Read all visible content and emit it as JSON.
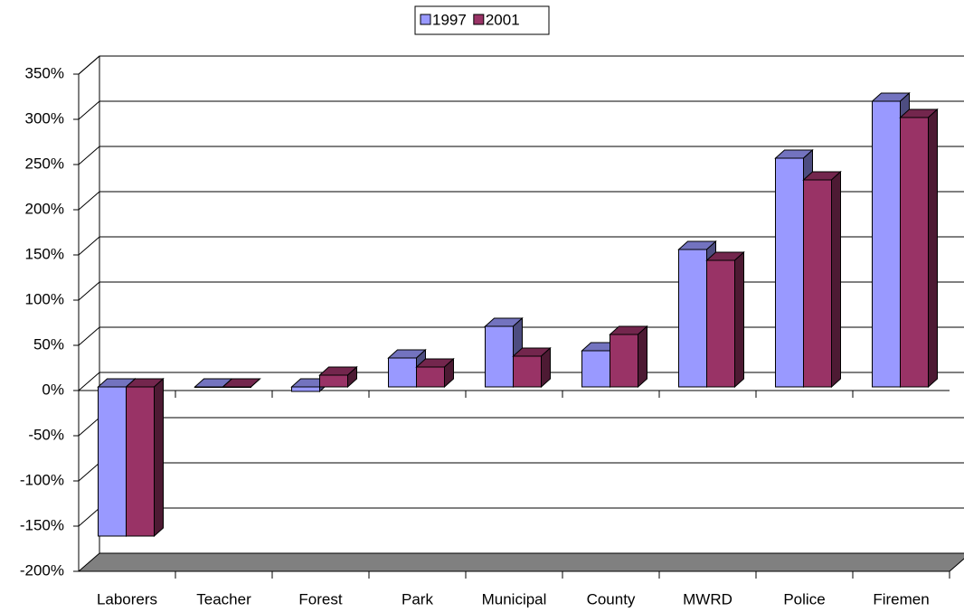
{
  "chart_data": {
    "type": "bar3d",
    "categories": [
      "Laborers",
      "Teacher",
      "Forest",
      "Park",
      "Municipal",
      "County",
      "MWRD",
      "Police",
      "Firemen"
    ],
    "series": [
      {
        "name": "1997",
        "color": "#9999ff",
        "values": [
          -165,
          0,
          -5,
          32,
          67,
          40,
          152,
          253,
          316
        ]
      },
      {
        "name": "2001",
        "color": "#993366",
        "values": [
          -165,
          0,
          13,
          22,
          34,
          58,
          140,
          229,
          298
        ]
      }
    ],
    "ylim": [
      -200,
      350
    ],
    "yticks": [
      {
        "value": -200,
        "label": "-200%"
      },
      {
        "value": -150,
        "label": "-150%"
      },
      {
        "value": -100,
        "label": "-100%"
      },
      {
        "value": -50,
        "label": "-50%"
      },
      {
        "value": 0,
        "label": "0%"
      },
      {
        "value": 50,
        "label": "50%"
      },
      {
        "value": 100,
        "label": "100%"
      },
      {
        "value": 150,
        "label": "150%"
      },
      {
        "value": 200,
        "label": "200%"
      },
      {
        "value": 250,
        "label": "250%"
      },
      {
        "value": 300,
        "label": "300%"
      },
      {
        "value": 350,
        "label": "350%"
      }
    ],
    "grid": true,
    "legend": "top"
  }
}
